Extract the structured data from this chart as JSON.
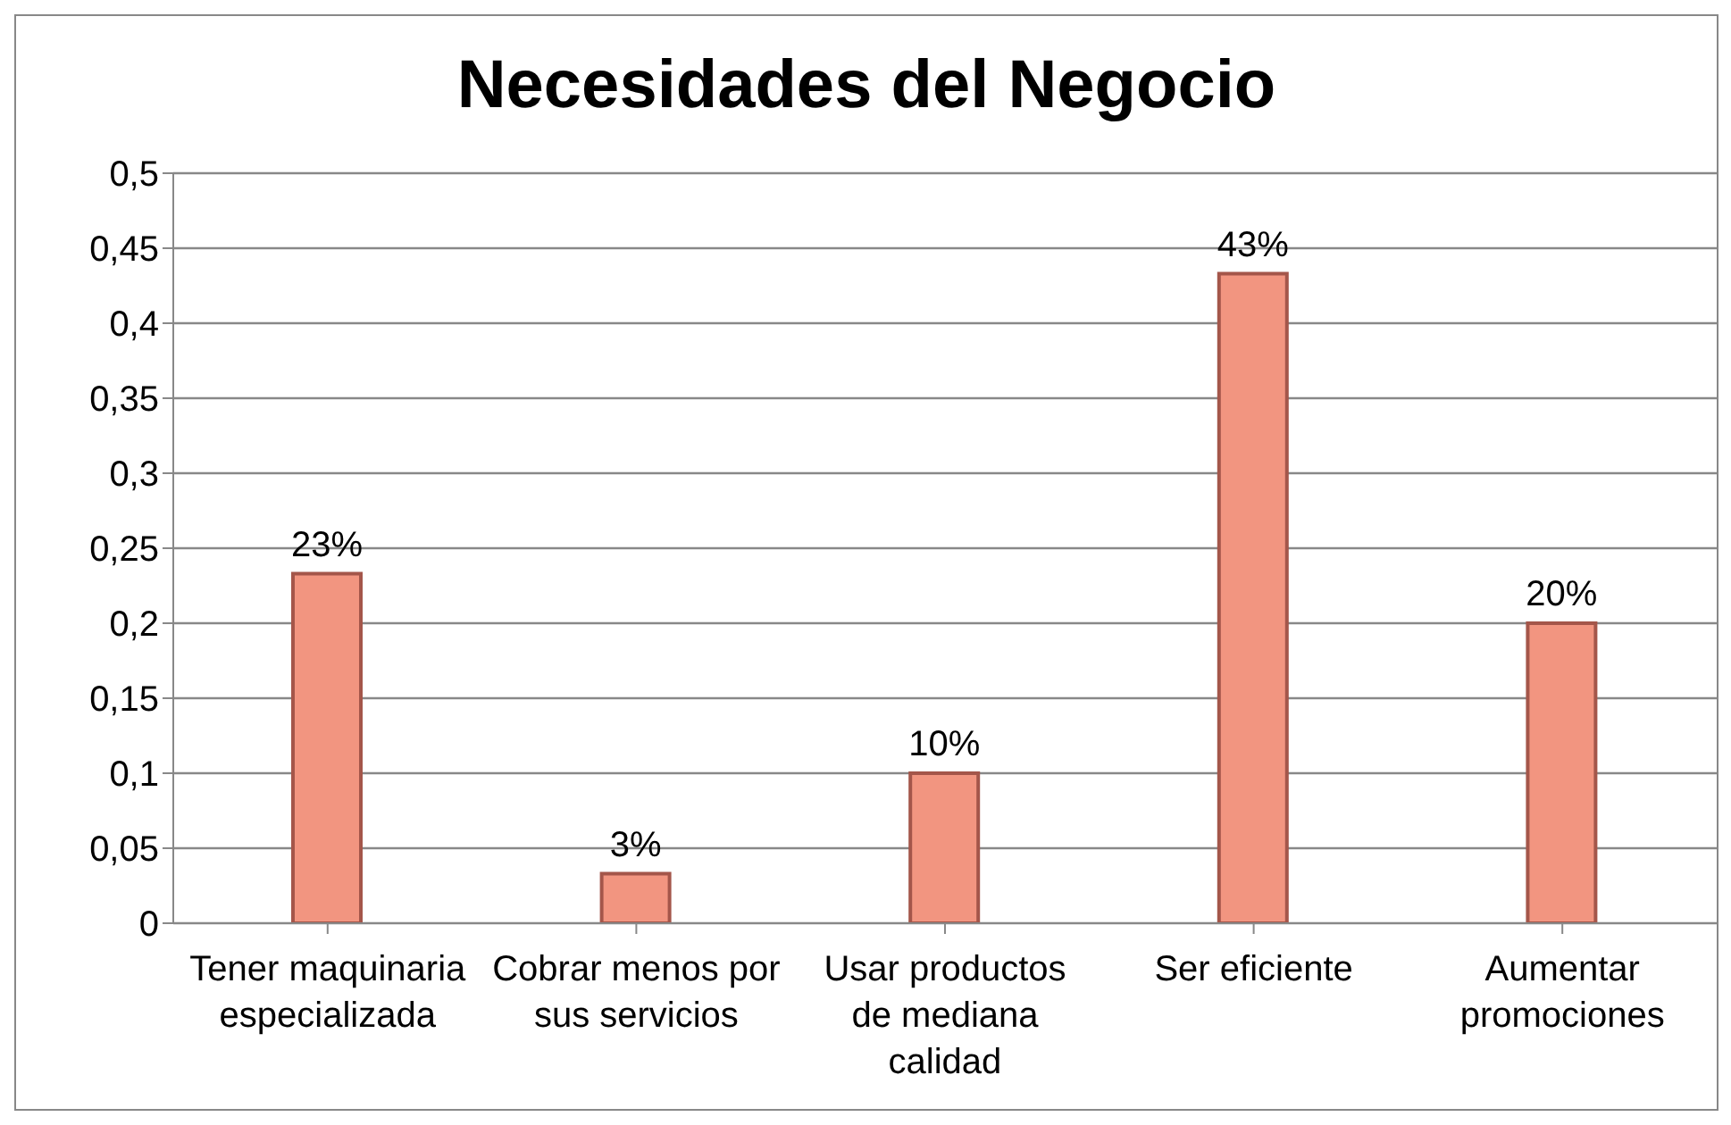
{
  "chart_data": {
    "type": "bar",
    "title": "Necesidades del Negocio",
    "categories": [
      "Tener maquinaria especializada",
      "Cobrar menos por sus servicios",
      "Usar productos de mediana calidad",
      "Ser eficiente",
      "Aumentar promociones"
    ],
    "values": [
      0.233,
      0.033,
      0.1,
      0.433,
      0.2
    ],
    "value_labels": [
      "23%",
      "3%",
      "10%",
      "43%",
      "20%"
    ],
    "color": "#f29580",
    "ylim": [
      0,
      0.5
    ],
    "yticks": [
      {
        "value": 0,
        "label": "0"
      },
      {
        "value": 0.05,
        "label": "0,05"
      },
      {
        "value": 0.1,
        "label": "0,1"
      },
      {
        "value": 0.15,
        "label": "0,15"
      },
      {
        "value": 0.2,
        "label": "0,2"
      },
      {
        "value": 0.25,
        "label": "0,25"
      },
      {
        "value": 0.3,
        "label": "0,3"
      },
      {
        "value": 0.35,
        "label": "0,35"
      },
      {
        "value": 0.4,
        "label": "0,4"
      },
      {
        "value": 0.45,
        "label": "0,45"
      },
      {
        "value": 0.5,
        "label": "0,5"
      }
    ],
    "grid": "y"
  }
}
